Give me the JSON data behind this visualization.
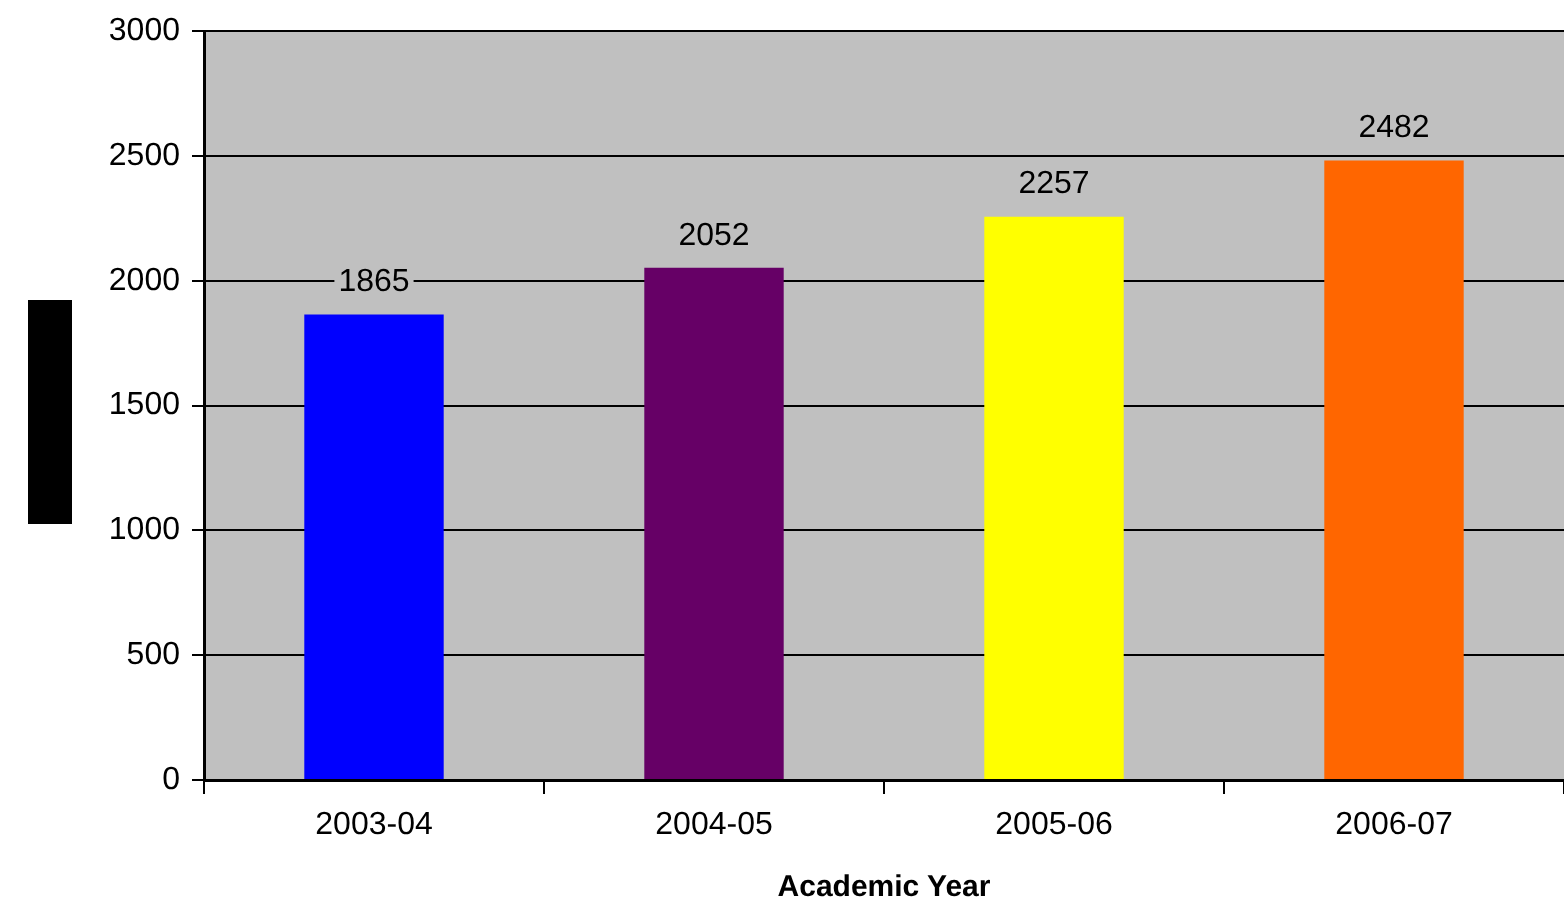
{
  "chart_data": {
    "type": "bar",
    "xlabel": "Academic Year",
    "categories": [
      "2003-04",
      "2004-05",
      "2005-06",
      "2006-07"
    ],
    "values": [
      1865,
      2052,
      2257,
      2482
    ],
    "colors": [
      "#0000ff",
      "#660066",
      "#ffff00",
      "#ff6600"
    ],
    "ylim": [
      0,
      3000
    ],
    "yticks": [
      0,
      500,
      1000,
      1500,
      2000,
      2500,
      3000
    ],
    "grid": "y",
    "legend": false,
    "data_labels": true
  }
}
